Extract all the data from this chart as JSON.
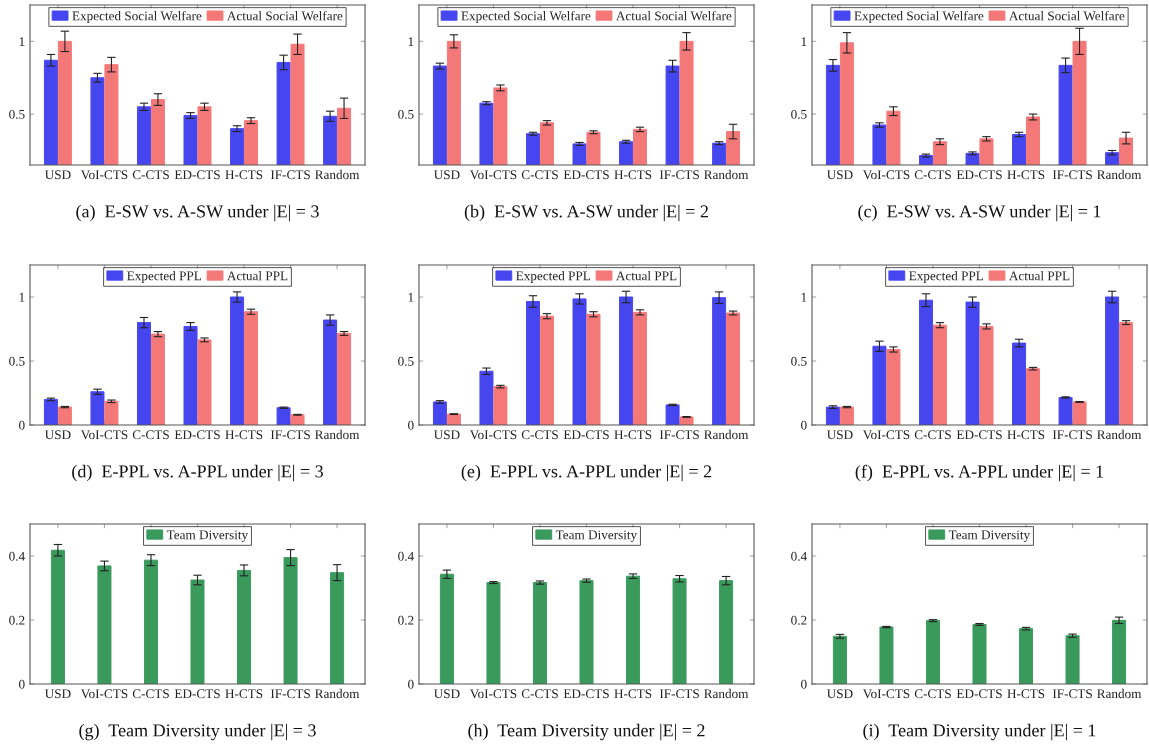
{
  "chart_data": [
    {
      "type": "bar",
      "title": "(a)  E-SW vs. A-SW under |E| = 3",
      "categories": [
        "USD",
        "VoI-CTS",
        "C-CTS",
        "ED-CTS",
        "H-CTS",
        "IF-CTS",
        "Random"
      ],
      "ylim": [
        0.15,
        1.25
      ],
      "yticks": [
        0.5,
        1
      ],
      "legend": "top",
      "series": [
        {
          "name": "Expected Social Welfare",
          "color": "#4646f0",
          "values": [
            0.87,
            0.75,
            0.55,
            0.49,
            0.4,
            0.855,
            0.485
          ],
          "errors": [
            0.04,
            0.03,
            0.025,
            0.02,
            0.02,
            0.05,
            0.035
          ]
        },
        {
          "name": "Actual Social Welfare",
          "color": "#f57878",
          "values": [
            1.0,
            0.84,
            0.6,
            0.55,
            0.455,
            0.98,
            0.54
          ],
          "errors": [
            0.07,
            0.05,
            0.04,
            0.025,
            0.02,
            0.07,
            0.07
          ]
        }
      ]
    },
    {
      "type": "bar",
      "title": "(b)  E-SW vs. A-SW under |E| = 2",
      "categories": [
        "USD",
        "VoI-CTS",
        "C-CTS",
        "ED-CTS",
        "H-CTS",
        "IF-CTS",
        "Random"
      ],
      "ylim": [
        0.15,
        1.25
      ],
      "yticks": [
        0.5,
        1
      ],
      "legend": "top",
      "series": [
        {
          "name": "Expected Social Welfare",
          "color": "#4646f0",
          "values": [
            0.83,
            0.575,
            0.365,
            0.295,
            0.31,
            0.83,
            0.3
          ],
          "errors": [
            0.02,
            0.01,
            0.01,
            0.01,
            0.01,
            0.04,
            0.01
          ]
        },
        {
          "name": "Actual Social Welfare",
          "color": "#f57878",
          "values": [
            1.0,
            0.68,
            0.44,
            0.375,
            0.395,
            1.0,
            0.38
          ],
          "errors": [
            0.045,
            0.02,
            0.015,
            0.01,
            0.015,
            0.06,
            0.05
          ]
        }
      ]
    },
    {
      "type": "bar",
      "title": "(c)  E-SW vs. A-SW under |E| = 1",
      "categories": [
        "USD",
        "VoI-CTS",
        "C-CTS",
        "ED-CTS",
        "H-CTS",
        "IF-CTS",
        "Random"
      ],
      "ylim": [
        0.15,
        1.25
      ],
      "yticks": [
        0.5,
        1
      ],
      "legend": "top",
      "series": [
        {
          "name": "Expected Social Welfare",
          "color": "#4646f0",
          "values": [
            0.835,
            0.425,
            0.215,
            0.23,
            0.36,
            0.835,
            0.235
          ],
          "errors": [
            0.04,
            0.015,
            0.01,
            0.01,
            0.015,
            0.05,
            0.015
          ]
        },
        {
          "name": "Actual Social Welfare",
          "color": "#f57878",
          "values": [
            0.99,
            0.52,
            0.31,
            0.33,
            0.48,
            1.0,
            0.335
          ],
          "errors": [
            0.07,
            0.03,
            0.02,
            0.015,
            0.02,
            0.09,
            0.04
          ]
        }
      ]
    },
    {
      "type": "bar",
      "title": "(d)  E-PPL vs. A-PPL under |E| = 3",
      "categories": [
        "USD",
        "VoI-CTS",
        "C-CTS",
        "ED-CTS",
        "H-CTS",
        "IF-CTS",
        "Random"
      ],
      "ylim": [
        0,
        1.25
      ],
      "yticks": [
        0,
        0.5,
        1
      ],
      "legend": "top",
      "series": [
        {
          "name": "Expected PPL",
          "color": "#4646f0",
          "values": [
            0.2,
            0.26,
            0.8,
            0.77,
            1.0,
            0.135,
            0.82
          ],
          "errors": [
            0.01,
            0.02,
            0.04,
            0.03,
            0.04,
            0.005,
            0.04
          ]
        },
        {
          "name": "Actual PPL",
          "color": "#f57878",
          "values": [
            0.14,
            0.185,
            0.71,
            0.665,
            0.885,
            0.08,
            0.715
          ],
          "errors": [
            0.005,
            0.01,
            0.02,
            0.015,
            0.02,
            0.003,
            0.015
          ]
        }
      ]
    },
    {
      "type": "bar",
      "title": "(e)  E-PPL vs. A-PPL under |E| = 2",
      "categories": [
        "USD",
        "VoI-CTS",
        "C-CTS",
        "ED-CTS",
        "H-CTS",
        "IF-CTS",
        "Random"
      ],
      "ylim": [
        0,
        1.25
      ],
      "yticks": [
        0,
        0.5,
        1
      ],
      "legend": "top",
      "series": [
        {
          "name": "Expected PPL",
          "color": "#4646f0",
          "values": [
            0.18,
            0.42,
            0.965,
            0.985,
            1.0,
            0.157,
            0.995
          ],
          "errors": [
            0.01,
            0.025,
            0.045,
            0.04,
            0.045,
            0.005,
            0.045
          ]
        },
        {
          "name": "Actual PPL",
          "color": "#f57878",
          "values": [
            0.085,
            0.3,
            0.85,
            0.865,
            0.88,
            0.063,
            0.875
          ],
          "errors": [
            0.003,
            0.01,
            0.02,
            0.02,
            0.02,
            0.003,
            0.015
          ]
        }
      ]
    },
    {
      "type": "bar",
      "title": "(f)  E-PPL vs. A-PPL under |E| = 1",
      "categories": [
        "USD",
        "VoI-CTS",
        "C-CTS",
        "ED-CTS",
        "H-CTS",
        "IF-CTS",
        "Random"
      ],
      "ylim": [
        0,
        1.25
      ],
      "yticks": [
        0,
        0.5,
        1
      ],
      "legend": "top",
      "series": [
        {
          "name": "Expected PPL",
          "color": "#4646f0",
          "values": [
            0.14,
            0.615,
            0.975,
            0.96,
            0.64,
            0.215,
            1.0
          ],
          "errors": [
            0.01,
            0.04,
            0.05,
            0.04,
            0.03,
            0.005,
            0.045
          ]
        },
        {
          "name": "Actual PPL",
          "color": "#f57878",
          "values": [
            0.14,
            0.59,
            0.78,
            0.77,
            0.44,
            0.18,
            0.8
          ],
          "errors": [
            0.005,
            0.02,
            0.02,
            0.02,
            0.01,
            0.003,
            0.015
          ]
        }
      ]
    },
    {
      "type": "bar",
      "title": "(g)  Team Diversity under |E| = 3",
      "categories": [
        "USD",
        "VoI-CTS",
        "C-CTS",
        "ED-CTS",
        "H-CTS",
        "IF-CTS",
        "Random"
      ],
      "ylim": [
        0,
        0.5
      ],
      "yticks": [
        0,
        0.2,
        0.4
      ],
      "legend": "top",
      "series": [
        {
          "name": "Team Diversity",
          "color": "#3a9a5c",
          "values": [
            0.418,
            0.369,
            0.387,
            0.325,
            0.355,
            0.395,
            0.348
          ],
          "errors": [
            0.018,
            0.015,
            0.017,
            0.015,
            0.017,
            0.025,
            0.025
          ]
        }
      ]
    },
    {
      "type": "bar",
      "title": "(h)  Team Diversity under |E| = 2",
      "categories": [
        "USD",
        "VoI-CTS",
        "C-CTS",
        "ED-CTS",
        "H-CTS",
        "IF-CTS",
        "Random"
      ],
      "ylim": [
        0,
        0.5
      ],
      "yticks": [
        0,
        0.2,
        0.4
      ],
      "legend": "top",
      "series": [
        {
          "name": "Team Diversity",
          "color": "#3a9a5c",
          "values": [
            0.343,
            0.317,
            0.317,
            0.323,
            0.337,
            0.329,
            0.323
          ],
          "errors": [
            0.013,
            0.003,
            0.005,
            0.005,
            0.007,
            0.01,
            0.013
          ]
        }
      ]
    },
    {
      "type": "bar",
      "title": "(i)  Team Diversity under |E| = 1",
      "categories": [
        "USD",
        "VoI-CTS",
        "C-CTS",
        "ED-CTS",
        "H-CTS",
        "IF-CTS",
        "Random"
      ],
      "ylim": [
        0,
        0.5
      ],
      "yticks": [
        0,
        0.2,
        0.4
      ],
      "legend": "top",
      "series": [
        {
          "name": "Team Diversity",
          "color": "#3a9a5c",
          "values": [
            0.149,
            0.178,
            0.198,
            0.186,
            0.173,
            0.151,
            0.199
          ],
          "errors": [
            0.006,
            0.002,
            0.003,
            0.003,
            0.004,
            0.005,
            0.01
          ]
        }
      ]
    }
  ]
}
